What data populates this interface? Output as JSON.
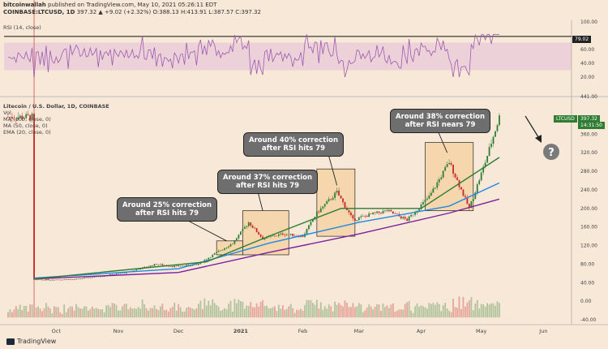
{
  "header": {
    "line1_user": "bitcoinwallah",
    "line1_rest": " published on TradingView.com, May 10, 2021 05:26:11 EDT",
    "symbol": "COINBASE:LTCUSD, 1D",
    "ohlc": "397.32 ▲ +9.02 (+2.32%) O:388.13 H:413.91 L:387.57 C:397.32"
  },
  "rsi_panel": {
    "label": "RSI (14, close)",
    "current": "79.02",
    "ticks": [
      "100.00",
      "60.00",
      "40.00",
      "20.00"
    ]
  },
  "main_panel": {
    "title": "Litecoin / U.S. Dollar, 1D, COINBASE",
    "indicators": [
      "Vol",
      "MA (100, close, 0)",
      "MA (50, close, 0)",
      "EMA (20, close, 0)"
    ],
    "price_tag": "397.32",
    "price_tag_symbol": "LTCUSD",
    "countdown": "14:31:50",
    "top_tick": "441.00",
    "question_mark": "?"
  },
  "annotations": [
    {
      "line1": "Around 25% correction",
      "line2": "after RSI hits 79"
    },
    {
      "line1": "Around 37% correction",
      "line2": "after RSI hits 79"
    },
    {
      "line1": "Around 40% correction",
      "line2": "after RSI hits 79"
    },
    {
      "line1": "Around 38% correction",
      "line2": "after RSI nears 79"
    }
  ],
  "footer": {
    "brand": "TradingView"
  },
  "colors": {
    "background": "#f7e8d8",
    "rsi_line": "#9c5bb0",
    "rsi_band": "#e8c8d8",
    "up_candle": "#2e7d32",
    "down_candle": "#c62828",
    "ma100": "#7b1fa2",
    "ma50": "#1e88e5",
    "ema20": "#2e7d32",
    "highlight_box": "#f5c98a"
  },
  "chart_data": {
    "type": "candlestick",
    "x_ticks": [
      "Oct",
      "Nov",
      "Dec",
      "2021",
      "Feb",
      "Mar",
      "Apr",
      "May",
      "Jun"
    ],
    "y_ticks": [
      360,
      320,
      280,
      240,
      200,
      160,
      120,
      80,
      40,
      0,
      -40
    ],
    "ylim": [
      -40,
      441
    ],
    "rsi_ylim": [
      0,
      100
    ],
    "rsi_ticks": [
      100,
      60,
      40,
      20
    ],
    "rsi_level_line": 79.02,
    "price_series": [
      [
        "2020-09-20",
        46
      ],
      [
        "2020-10-10",
        47
      ],
      [
        "2020-10-25",
        55
      ],
      [
        "2020-11-05",
        62
      ],
      [
        "2020-11-20",
        80
      ],
      [
        "2020-11-28",
        75
      ],
      [
        "2020-12-10",
        78
      ],
      [
        "2020-12-22",
        110
      ],
      [
        "2020-12-28",
        125
      ],
      [
        "2021-01-05",
        170
      ],
      [
        "2021-01-12",
        135
      ],
      [
        "2021-01-22",
        145
      ],
      [
        "2021-02-01",
        140
      ],
      [
        "2021-02-08",
        190
      ],
      [
        "2021-02-18",
        235
      ],
      [
        "2021-02-26",
        175
      ],
      [
        "2021-03-05",
        185
      ],
      [
        "2021-03-15",
        195
      ],
      [
        "2021-03-25",
        175
      ],
      [
        "2021-04-05",
        225
      ],
      [
        "2021-04-15",
        300
      ],
      [
        "2021-04-25",
        200
      ],
      [
        "2021-05-03",
        300
      ],
      [
        "2021-05-10",
        397
      ]
    ],
    "ma100": [
      [
        "2020-09-20",
        48
      ],
      [
        "2020-12-01",
        62
      ],
      [
        "2021-01-15",
        105
      ],
      [
        "2021-03-01",
        145
      ],
      [
        "2021-04-15",
        190
      ],
      [
        "2021-05-10",
        220
      ]
    ],
    "ma50": [
      [
        "2020-09-20",
        50
      ],
      [
        "2020-12-01",
        70
      ],
      [
        "2021-01-15",
        125
      ],
      [
        "2021-03-01",
        170
      ],
      [
        "2021-04-15",
        205
      ],
      [
        "2021-05-10",
        255
      ]
    ],
    "ema20": [
      [
        "2020-09-20",
        48
      ],
      [
        "2020-12-15",
        85
      ],
      [
        "2021-01-15",
        140
      ],
      [
        "2021-02-20",
        200
      ],
      [
        "2021-04-01",
        200
      ],
      [
        "2021-05-10",
        310
      ]
    ],
    "correction_boxes": [
      {
        "x0": "2020-12-20",
        "x1": "2021-01-02",
        "y0": 100,
        "y1": 130
      },
      {
        "x0": "2021-01-02",
        "x1": "2021-01-25",
        "y0": 100,
        "y1": 195
      },
      {
        "x0": "2021-02-08",
        "x1": "2021-02-27",
        "y0": 140,
        "y1": 285
      },
      {
        "x0": "2021-04-03",
        "x1": "2021-04-27",
        "y0": 195,
        "y1": 342
      }
    ]
  }
}
